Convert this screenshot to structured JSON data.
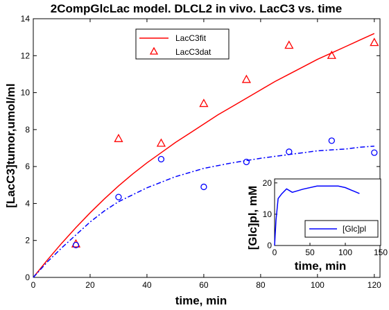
{
  "chart_data": [
    {
      "type": "line",
      "title": "2CompGlcLac model. DLCL2 in vivo. LacC3 vs. time",
      "xlabel": "time, min",
      "ylabel": "[LacC3]tumor,umol/ml",
      "xlim": [
        0,
        122
      ],
      "ylim": [
        0,
        14
      ],
      "xticks": [
        "0",
        "20",
        "40",
        "60",
        "80",
        "100",
        "120"
      ],
      "yticks": [
        "0",
        "2",
        "4",
        "6",
        "8",
        "10",
        "12",
        "14"
      ],
      "grid": false,
      "legend_position": "top-center",
      "series": [
        {
          "name": "LacC3fit",
          "style": "line",
          "color": "#ff0000",
          "x": [
            0,
            5,
            10,
            15,
            20,
            25,
            30,
            35,
            40,
            45,
            50,
            55,
            60,
            65,
            70,
            75,
            80,
            85,
            90,
            95,
            100,
            105,
            110,
            115,
            120
          ],
          "y": [
            0,
            0.95,
            1.85,
            2.7,
            3.5,
            4.25,
            4.95,
            5.6,
            6.2,
            6.75,
            7.3,
            7.8,
            8.3,
            8.8,
            9.25,
            9.7,
            10.15,
            10.6,
            11.0,
            11.4,
            11.8,
            12.15,
            12.5,
            12.85,
            13.2
          ]
        },
        {
          "name": "LacC3dat",
          "style": "triangle",
          "color": "#ff0000",
          "x": [
            15,
            30,
            45,
            60,
            75,
            90,
            105,
            120
          ],
          "y": [
            1.8,
            7.5,
            7.25,
            9.4,
            10.7,
            12.55,
            12.0,
            12.7
          ]
        },
        {
          "style": "dash-dot",
          "color": "#0000ff",
          "x": [
            0,
            5,
            10,
            15,
            20,
            25,
            30,
            40,
            50,
            60,
            70,
            80,
            90,
            100,
            110,
            115,
            120
          ],
          "y": [
            0,
            0.85,
            1.6,
            2.3,
            3.0,
            3.6,
            4.1,
            4.85,
            5.45,
            5.9,
            6.2,
            6.45,
            6.65,
            6.85,
            6.95,
            7.05,
            7.1
          ]
        },
        {
          "style": "circle",
          "color": "#0000ff",
          "x": [
            15,
            30,
            45,
            60,
            75,
            90,
            105,
            120
          ],
          "y": [
            1.75,
            4.35,
            6.4,
            4.9,
            6.25,
            6.8,
            7.4,
            6.75
          ]
        }
      ]
    },
    {
      "type": "line",
      "xlabel": "time, min",
      "ylabel": "[Glc]pl, mM",
      "xlim": [
        0,
        150
      ],
      "ylim": [
        0,
        20
      ],
      "xticks": [
        "0",
        "50",
        "100",
        "150"
      ],
      "yticks": [
        "0",
        "10",
        "20"
      ],
      "legend_position": "bottom-right",
      "series": [
        {
          "name": "[Glc]pl",
          "color": "#0000ff",
          "x": [
            0,
            2,
            5,
            10,
            17,
            25,
            40,
            60,
            75,
            90,
            100,
            120
          ],
          "y": [
            0,
            8,
            15,
            16.5,
            18.1,
            17.0,
            18.0,
            19.0,
            19.0,
            19.0,
            18.5,
            16.6
          ]
        }
      ]
    }
  ]
}
